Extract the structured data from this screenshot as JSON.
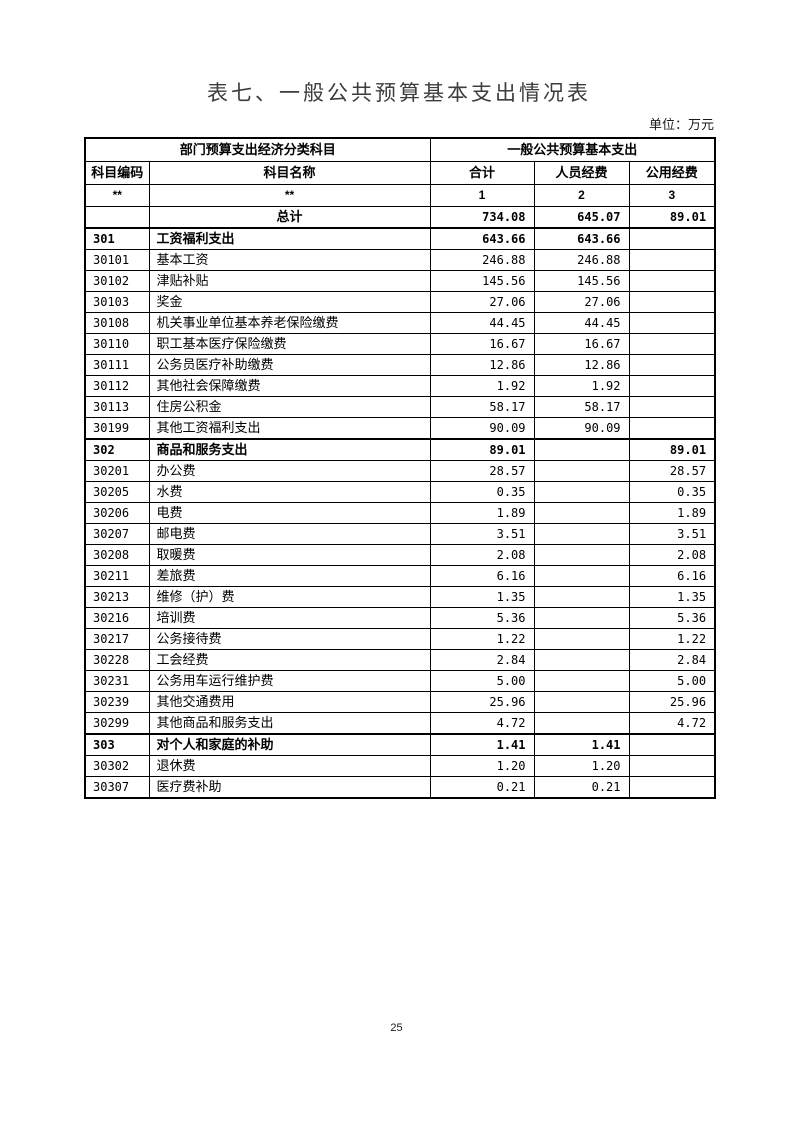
{
  "page": {
    "title": "表七、一般公共预算基本支出情况表",
    "unit_note": "单位：万元",
    "page_number": "25"
  },
  "table": {
    "group_headers": [
      "部门预算支出经济分类科目",
      "一般公共预算基本支出"
    ],
    "columns": [
      "科目编码",
      "科目名称",
      "合计",
      "人员经费",
      "公用经费"
    ],
    "index_row": [
      "**",
      "**",
      "1",
      "2",
      "3"
    ],
    "rows": [
      {
        "code": "",
        "name": "总计",
        "total": "734.08",
        "personnel": "645.07",
        "public": "89.01",
        "grand": true
      },
      {
        "code": "301",
        "name": "工资福利支出",
        "total": "643.66",
        "personnel": "643.66",
        "public": "",
        "section": true
      },
      {
        "code": "30101",
        "name": "基本工资",
        "total": "246.88",
        "personnel": "246.88",
        "public": ""
      },
      {
        "code": "30102",
        "name": "津贴补贴",
        "total": "145.56",
        "personnel": "145.56",
        "public": ""
      },
      {
        "code": "30103",
        "name": "奖金",
        "total": "27.06",
        "personnel": "27.06",
        "public": ""
      },
      {
        "code": "30108",
        "name": "机关事业单位基本养老保险缴费",
        "total": "44.45",
        "personnel": "44.45",
        "public": ""
      },
      {
        "code": "30110",
        "name": "职工基本医疗保险缴费",
        "total": "16.67",
        "personnel": "16.67",
        "public": ""
      },
      {
        "code": "30111",
        "name": "公务员医疗补助缴费",
        "total": "12.86",
        "personnel": "12.86",
        "public": ""
      },
      {
        "code": "30112",
        "name": "其他社会保障缴费",
        "total": "1.92",
        "personnel": "1.92",
        "public": ""
      },
      {
        "code": "30113",
        "name": "住房公积金",
        "total": "58.17",
        "personnel": "58.17",
        "public": ""
      },
      {
        "code": "30199",
        "name": "其他工资福利支出",
        "total": "90.09",
        "personnel": "90.09",
        "public": ""
      },
      {
        "code": "302",
        "name": "商品和服务支出",
        "total": "89.01",
        "personnel": "",
        "public": "89.01",
        "section": true
      },
      {
        "code": "30201",
        "name": "办公费",
        "total": "28.57",
        "personnel": "",
        "public": "28.57"
      },
      {
        "code": "30205",
        "name": "水费",
        "total": "0.35",
        "personnel": "",
        "public": "0.35"
      },
      {
        "code": "30206",
        "name": "电费",
        "total": "1.89",
        "personnel": "",
        "public": "1.89"
      },
      {
        "code": "30207",
        "name": "邮电费",
        "total": "3.51",
        "personnel": "",
        "public": "3.51"
      },
      {
        "code": "30208",
        "name": "取暖费",
        "total": "2.08",
        "personnel": "",
        "public": "2.08"
      },
      {
        "code": "30211",
        "name": "差旅费",
        "total": "6.16",
        "personnel": "",
        "public": "6.16"
      },
      {
        "code": "30213",
        "name": "维修（护）费",
        "total": "1.35",
        "personnel": "",
        "public": "1.35"
      },
      {
        "code": "30216",
        "name": "培训费",
        "total": "5.36",
        "personnel": "",
        "public": "5.36"
      },
      {
        "code": "30217",
        "name": "公务接待费",
        "total": "1.22",
        "personnel": "",
        "public": "1.22"
      },
      {
        "code": "30228",
        "name": "工会经费",
        "total": "2.84",
        "personnel": "",
        "public": "2.84"
      },
      {
        "code": "30231",
        "name": "公务用车运行维护费",
        "total": "5.00",
        "personnel": "",
        "public": "5.00"
      },
      {
        "code": "30239",
        "name": "其他交通费用",
        "total": "25.96",
        "personnel": "",
        "public": "25.96"
      },
      {
        "code": "30299",
        "name": "其他商品和服务支出",
        "total": "4.72",
        "personnel": "",
        "public": "4.72"
      },
      {
        "code": "303",
        "name": "对个人和家庭的补助",
        "total": "1.41",
        "personnel": "1.41",
        "public": "",
        "section": true
      },
      {
        "code": "30302",
        "name": "退休费",
        "total": "1.20",
        "personnel": "1.20",
        "public": ""
      },
      {
        "code": "30307",
        "name": "医疗费补助",
        "total": "0.21",
        "personnel": "0.21",
        "public": ""
      }
    ]
  }
}
